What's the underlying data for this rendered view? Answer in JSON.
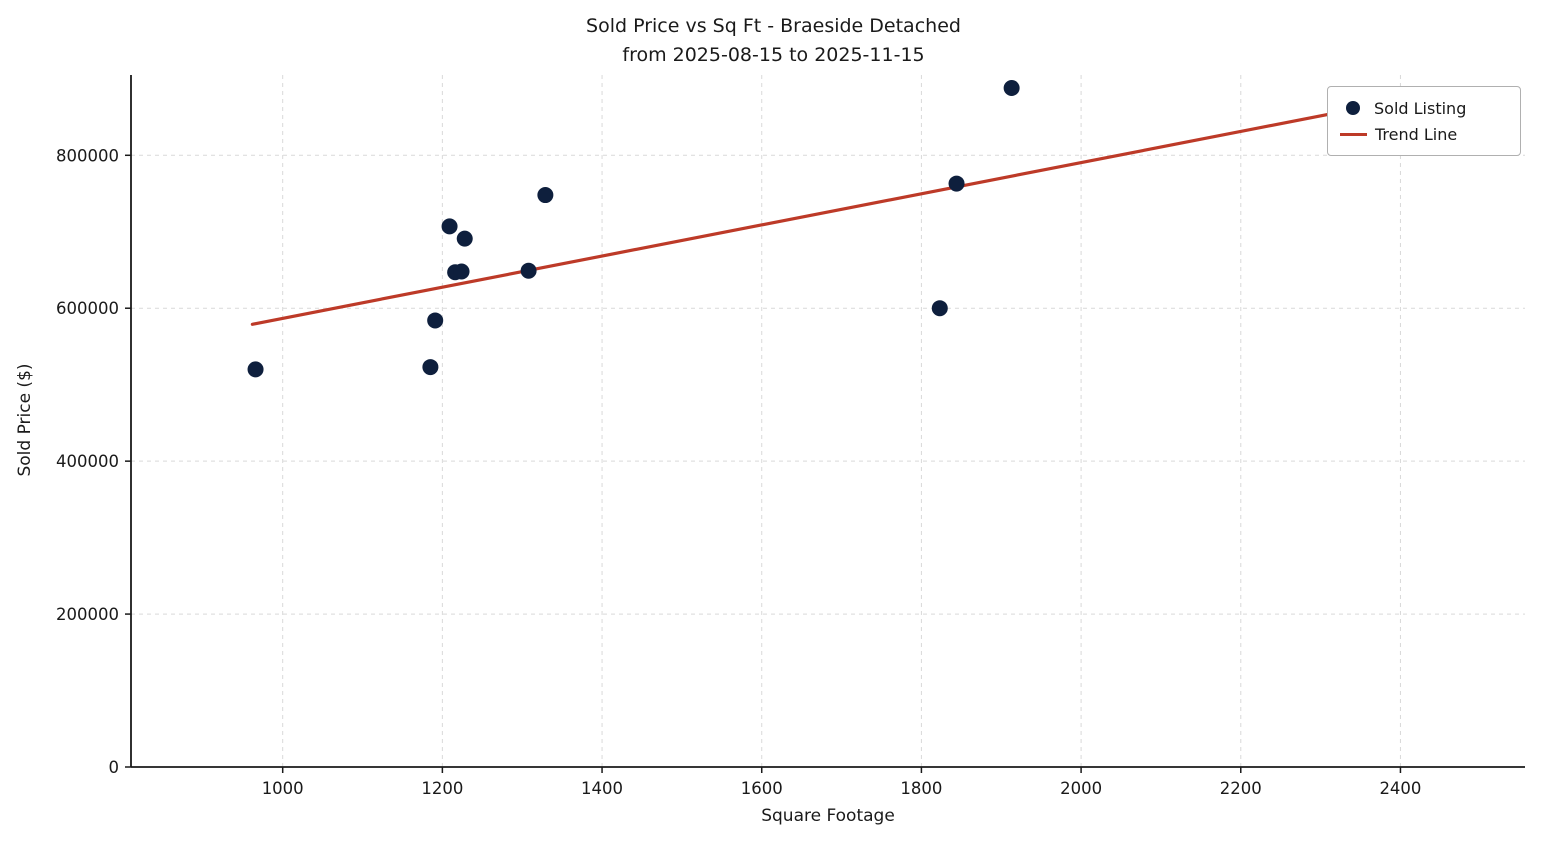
{
  "chart_data": {
    "type": "scatter",
    "title": "Sold Price vs Sq Ft - Braeside Detached",
    "subtitle": "from 2025-08-15 to 2025-11-15",
    "xlabel": "Square Footage",
    "ylabel": "Sold Price ($)",
    "xlim": [
      810,
      2556
    ],
    "ylim": [
      0,
      905000
    ],
    "xticks": [
      1000,
      1200,
      1400,
      1600,
      1800,
      2000,
      2200,
      2400
    ],
    "yticks": [
      0,
      200000,
      400000,
      600000,
      800000
    ],
    "grid": true,
    "legend_position": "upper right",
    "points": [
      [
        966,
        520000
      ],
      [
        1185,
        523000
      ],
      [
        1191,
        584000
      ],
      [
        1209,
        707000
      ],
      [
        1228,
        691000
      ],
      [
        1216,
        647000
      ],
      [
        1224,
        648000
      ],
      [
        1308,
        649000
      ],
      [
        1329,
        748000
      ],
      [
        1823,
        600000
      ],
      [
        1844,
        763000
      ],
      [
        1913,
        888000
      ]
    ],
    "trend_line": {
      "x1": 962,
      "y1": 579000,
      "x2": 2420,
      "y2": 876000
    },
    "legend": {
      "sold_label": "Sold Listing",
      "trend_label": "Trend Line"
    },
    "colors": {
      "point": "#0e1f3d",
      "trend": "#bd3a28",
      "grid": "#d9d9d9",
      "axis": "#1a1a1a"
    }
  }
}
